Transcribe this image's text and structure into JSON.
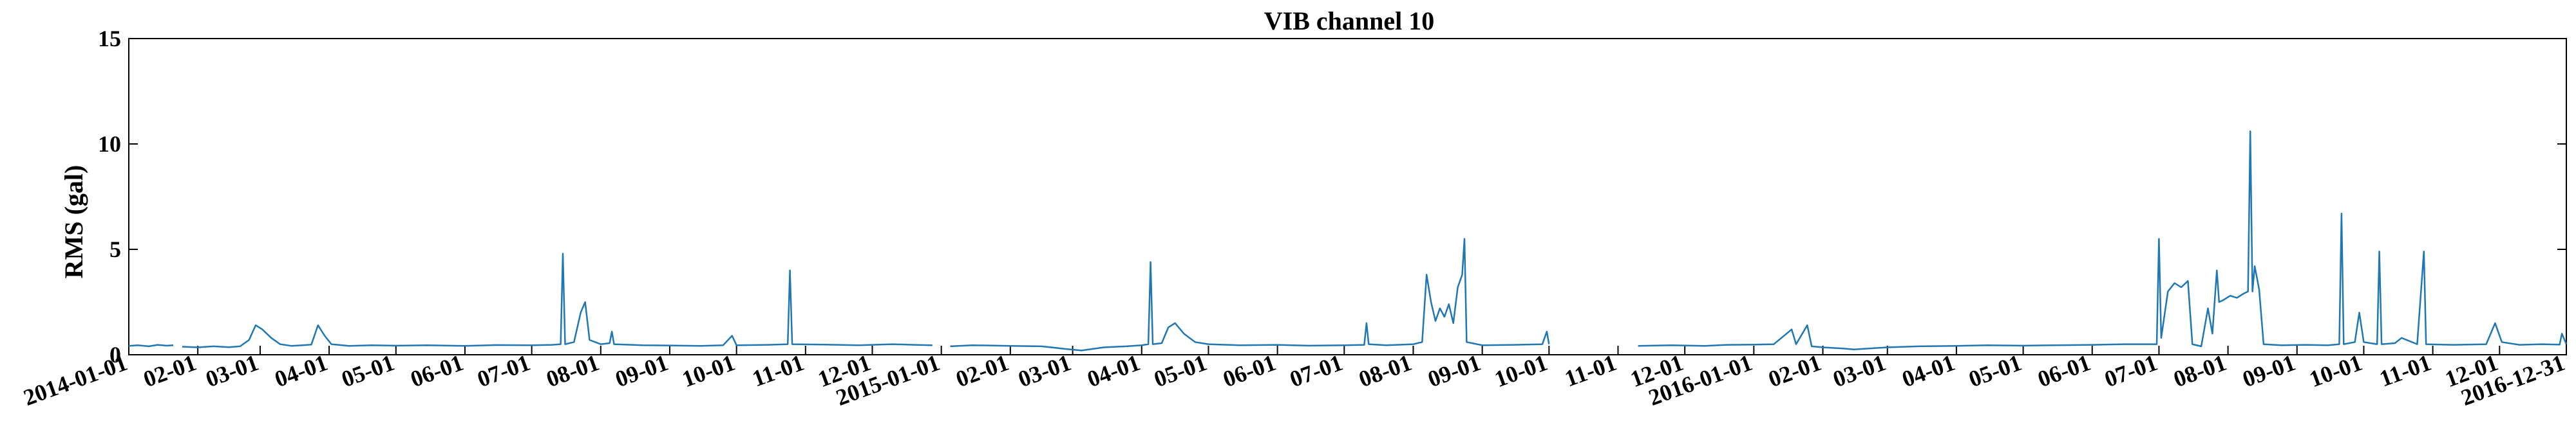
{
  "chart_data": {
    "type": "line",
    "title": "VIB channel 10",
    "xlabel": "",
    "ylabel": "RMS (gal)",
    "xlim": [
      "2014-01-01",
      "2016-12-31"
    ],
    "ylim": [
      0,
      15
    ],
    "yticks": [
      "0",
      "5",
      "10",
      "15"
    ],
    "xticks": [
      "2014-01-01",
      "02-01",
      "03-01",
      "04-01",
      "05-01",
      "06-01",
      "07-01",
      "08-01",
      "09-01",
      "10-01",
      "11-01",
      "12-01",
      "2015-01-01",
      "02-01",
      "03-01",
      "04-01",
      "05-01",
      "06-01",
      "07-01",
      "08-01",
      "09-01",
      "10-01",
      "11-01",
      "12-01",
      "2016-01-01",
      "02-01",
      "03-01",
      "04-01",
      "05-01",
      "06-01",
      "07-01",
      "08-01",
      "09-01",
      "10-01",
      "11-01",
      "12-01",
      "2016-12-31"
    ],
    "grid": false,
    "line_color": "#1f77b4",
    "series": [
      {
        "segments": [
          [
            [
              "2014-01-01",
              0.42
            ],
            [
              "2014-01-05",
              0.45
            ],
            [
              "2014-01-10",
              0.4
            ],
            [
              "2014-01-14",
              0.47
            ],
            [
              "2014-01-18",
              0.43
            ],
            [
              "2014-01-21",
              0.45
            ]
          ],
          [
            [
              "2014-01-25",
              0.38
            ],
            [
              "2014-02-01",
              0.35
            ],
            [
              "2014-02-08",
              0.4
            ],
            [
              "2014-02-15",
              0.36
            ],
            [
              "2014-02-20",
              0.4
            ],
            [
              "2014-02-24",
              0.7
            ],
            [
              "2014-02-27",
              1.4
            ],
            [
              "2014-03-02",
              1.2
            ],
            [
              "2014-03-06",
              0.8
            ],
            [
              "2014-03-10",
              0.5
            ],
            [
              "2014-03-15",
              0.42
            ],
            [
              "2014-03-20",
              0.45
            ],
            [
              "2014-03-24",
              0.48
            ],
            [
              "2014-03-27",
              1.4
            ],
            [
              "2014-03-30",
              0.9
            ],
            [
              "2014-04-02",
              0.5
            ],
            [
              "2014-04-10",
              0.42
            ],
            [
              "2014-04-20",
              0.45
            ],
            [
              "2014-05-01",
              0.43
            ],
            [
              "2014-05-15",
              0.45
            ],
            [
              "2014-06-01",
              0.42
            ],
            [
              "2014-06-15",
              0.46
            ],
            [
              "2014-07-01",
              0.45
            ],
            [
              "2014-07-10",
              0.47
            ],
            [
              "2014-07-14",
              0.5
            ],
            [
              "2014-07-15",
              4.8
            ],
            [
              "2014-07-16",
              0.5
            ],
            [
              "2014-07-20",
              0.6
            ],
            [
              "2014-07-23",
              2.0
            ],
            [
              "2014-07-25",
              2.5
            ],
            [
              "2014-07-27",
              0.7
            ],
            [
              "2014-08-01",
              0.5
            ],
            [
              "2014-08-05",
              0.55
            ],
            [
              "2014-08-06",
              1.1
            ],
            [
              "2014-08-07",
              0.5
            ],
            [
              "2014-08-20",
              0.45
            ],
            [
              "2014-09-01",
              0.44
            ],
            [
              "2014-09-15",
              0.42
            ],
            [
              "2014-09-25",
              0.45
            ],
            [
              "2014-09-29",
              0.9
            ],
            [
              "2014-10-01",
              0.45
            ],
            [
              "2014-10-15",
              0.47
            ],
            [
              "2014-10-24",
              0.5
            ],
            [
              "2014-10-25",
              4.0
            ],
            [
              "2014-10-26",
              0.5
            ],
            [
              "2014-11-10",
              0.48
            ],
            [
              "2014-11-25",
              0.45
            ],
            [
              "2014-12-10",
              0.5
            ],
            [
              "2014-12-20",
              0.47
            ],
            [
              "2014-12-28",
              0.45
            ]
          ],
          [
            [
              "2015-01-05",
              0.4
            ],
            [
              "2015-01-15",
              0.45
            ],
            [
              "2015-02-01",
              0.42
            ],
            [
              "2015-02-15",
              0.4
            ],
            [
              "2015-02-28",
              0.25
            ],
            [
              "2015-03-05",
              0.2
            ],
            [
              "2015-03-15",
              0.35
            ],
            [
              "2015-03-25",
              0.4
            ],
            [
              "2015-04-01",
              0.45
            ],
            [
              "2015-04-04",
              0.5
            ],
            [
              "2015-04-05",
              4.4
            ],
            [
              "2015-04-06",
              0.5
            ],
            [
              "2015-04-10",
              0.55
            ],
            [
              "2015-04-13",
              1.3
            ],
            [
              "2015-04-16",
              1.5
            ],
            [
              "2015-04-20",
              1.0
            ],
            [
              "2015-04-25",
              0.6
            ],
            [
              "2015-05-01",
              0.5
            ],
            [
              "2015-05-15",
              0.45
            ],
            [
              "2015-06-01",
              0.47
            ],
            [
              "2015-06-15",
              0.43
            ],
            [
              "2015-07-01",
              0.45
            ],
            [
              "2015-07-10",
              0.47
            ],
            [
              "2015-07-11",
              1.5
            ],
            [
              "2015-07-12",
              0.5
            ],
            [
              "2015-07-20",
              0.45
            ],
            [
              "2015-08-01",
              0.5
            ],
            [
              "2015-08-05",
              0.6
            ],
            [
              "2015-08-07",
              3.8
            ],
            [
              "2015-08-09",
              2.5
            ],
            [
              "2015-08-11",
              1.6
            ],
            [
              "2015-08-13",
              2.2
            ],
            [
              "2015-08-15",
              1.8
            ],
            [
              "2015-08-17",
              2.4
            ],
            [
              "2015-08-19",
              1.5
            ],
            [
              "2015-08-21",
              3.2
            ],
            [
              "2015-08-23",
              3.8
            ],
            [
              "2015-08-24",
              5.5
            ],
            [
              "2015-08-25",
              0.6
            ],
            [
              "2015-09-01",
              0.45
            ],
            [
              "2015-09-15",
              0.47
            ],
            [
              "2015-09-28",
              0.5
            ],
            [
              "2015-09-30",
              1.1
            ],
            [
              "2015-10-01",
              0.5
            ]
          ],
          [
            [
              "2015-11-10",
              0.42
            ],
            [
              "2015-11-25",
              0.45
            ],
            [
              "2015-12-10",
              0.42
            ],
            [
              "2015-12-20",
              0.47
            ],
            [
              "2016-01-01",
              0.48
            ],
            [
              "2016-01-10",
              0.5
            ],
            [
              "2016-01-18",
              1.2
            ],
            [
              "2016-01-20",
              0.5
            ],
            [
              "2016-01-25",
              1.4
            ],
            [
              "2016-01-27",
              0.4
            ],
            [
              "2016-02-01",
              0.35
            ],
            [
              "2016-02-10",
              0.3
            ],
            [
              "2016-02-15",
              0.25
            ],
            [
              "2016-03-01",
              0.35
            ],
            [
              "2016-03-15",
              0.4
            ],
            [
              "2016-04-01",
              0.42
            ],
            [
              "2016-04-15",
              0.45
            ],
            [
              "2016-05-01",
              0.43
            ],
            [
              "2016-05-15",
              0.45
            ],
            [
              "2016-06-01",
              0.47
            ],
            [
              "2016-06-15",
              0.5
            ],
            [
              "2016-06-30",
              0.5
            ],
            [
              "2016-07-01",
              5.5
            ],
            [
              "2016-07-02",
              0.8
            ],
            [
              "2016-07-05",
              3.0
            ],
            [
              "2016-07-08",
              3.4
            ],
            [
              "2016-07-11",
              3.2
            ],
            [
              "2016-07-14",
              3.5
            ],
            [
              "2016-07-16",
              0.5
            ],
            [
              "2016-07-20",
              0.4
            ],
            [
              "2016-07-23",
              2.2
            ],
            [
              "2016-07-25",
              1.0
            ],
            [
              "2016-07-27",
              4.0
            ],
            [
              "2016-07-28",
              2.5
            ],
            [
              "2016-07-30",
              2.6
            ],
            [
              "2016-08-02",
              2.8
            ],
            [
              "2016-08-05",
              2.7
            ],
            [
              "2016-08-08",
              2.9
            ],
            [
              "2016-08-10",
              3.0
            ],
            [
              "2016-08-11",
              10.6
            ],
            [
              "2016-08-12",
              3.0
            ],
            [
              "2016-08-13",
              4.2
            ],
            [
              "2016-08-15",
              3.1
            ],
            [
              "2016-08-17",
              0.5
            ],
            [
              "2016-08-25",
              0.45
            ],
            [
              "2016-09-05",
              0.47
            ],
            [
              "2016-09-15",
              0.45
            ],
            [
              "2016-09-20",
              0.5
            ],
            [
              "2016-09-21",
              6.7
            ],
            [
              "2016-09-22",
              0.5
            ],
            [
              "2016-09-27",
              0.6
            ],
            [
              "2016-09-29",
              2.0
            ],
            [
              "2016-10-01",
              0.6
            ],
            [
              "2016-10-07",
              0.5
            ],
            [
              "2016-10-08",
              4.9
            ],
            [
              "2016-10-09",
              0.5
            ],
            [
              "2016-10-15",
              0.55
            ],
            [
              "2016-10-18",
              0.8
            ],
            [
              "2016-10-25",
              0.5
            ],
            [
              "2016-10-28",
              4.9
            ],
            [
              "2016-10-29",
              0.5
            ],
            [
              "2016-11-10",
              0.47
            ],
            [
              "2016-11-25",
              0.5
            ],
            [
              "2016-11-29",
              1.5
            ],
            [
              "2016-12-02",
              0.6
            ],
            [
              "2016-12-10",
              0.47
            ],
            [
              "2016-12-20",
              0.5
            ],
            [
              "2016-12-28",
              0.48
            ],
            [
              "2016-12-29",
              1.0
            ],
            [
              "2016-12-31",
              0.5
            ]
          ]
        ]
      }
    ]
  }
}
